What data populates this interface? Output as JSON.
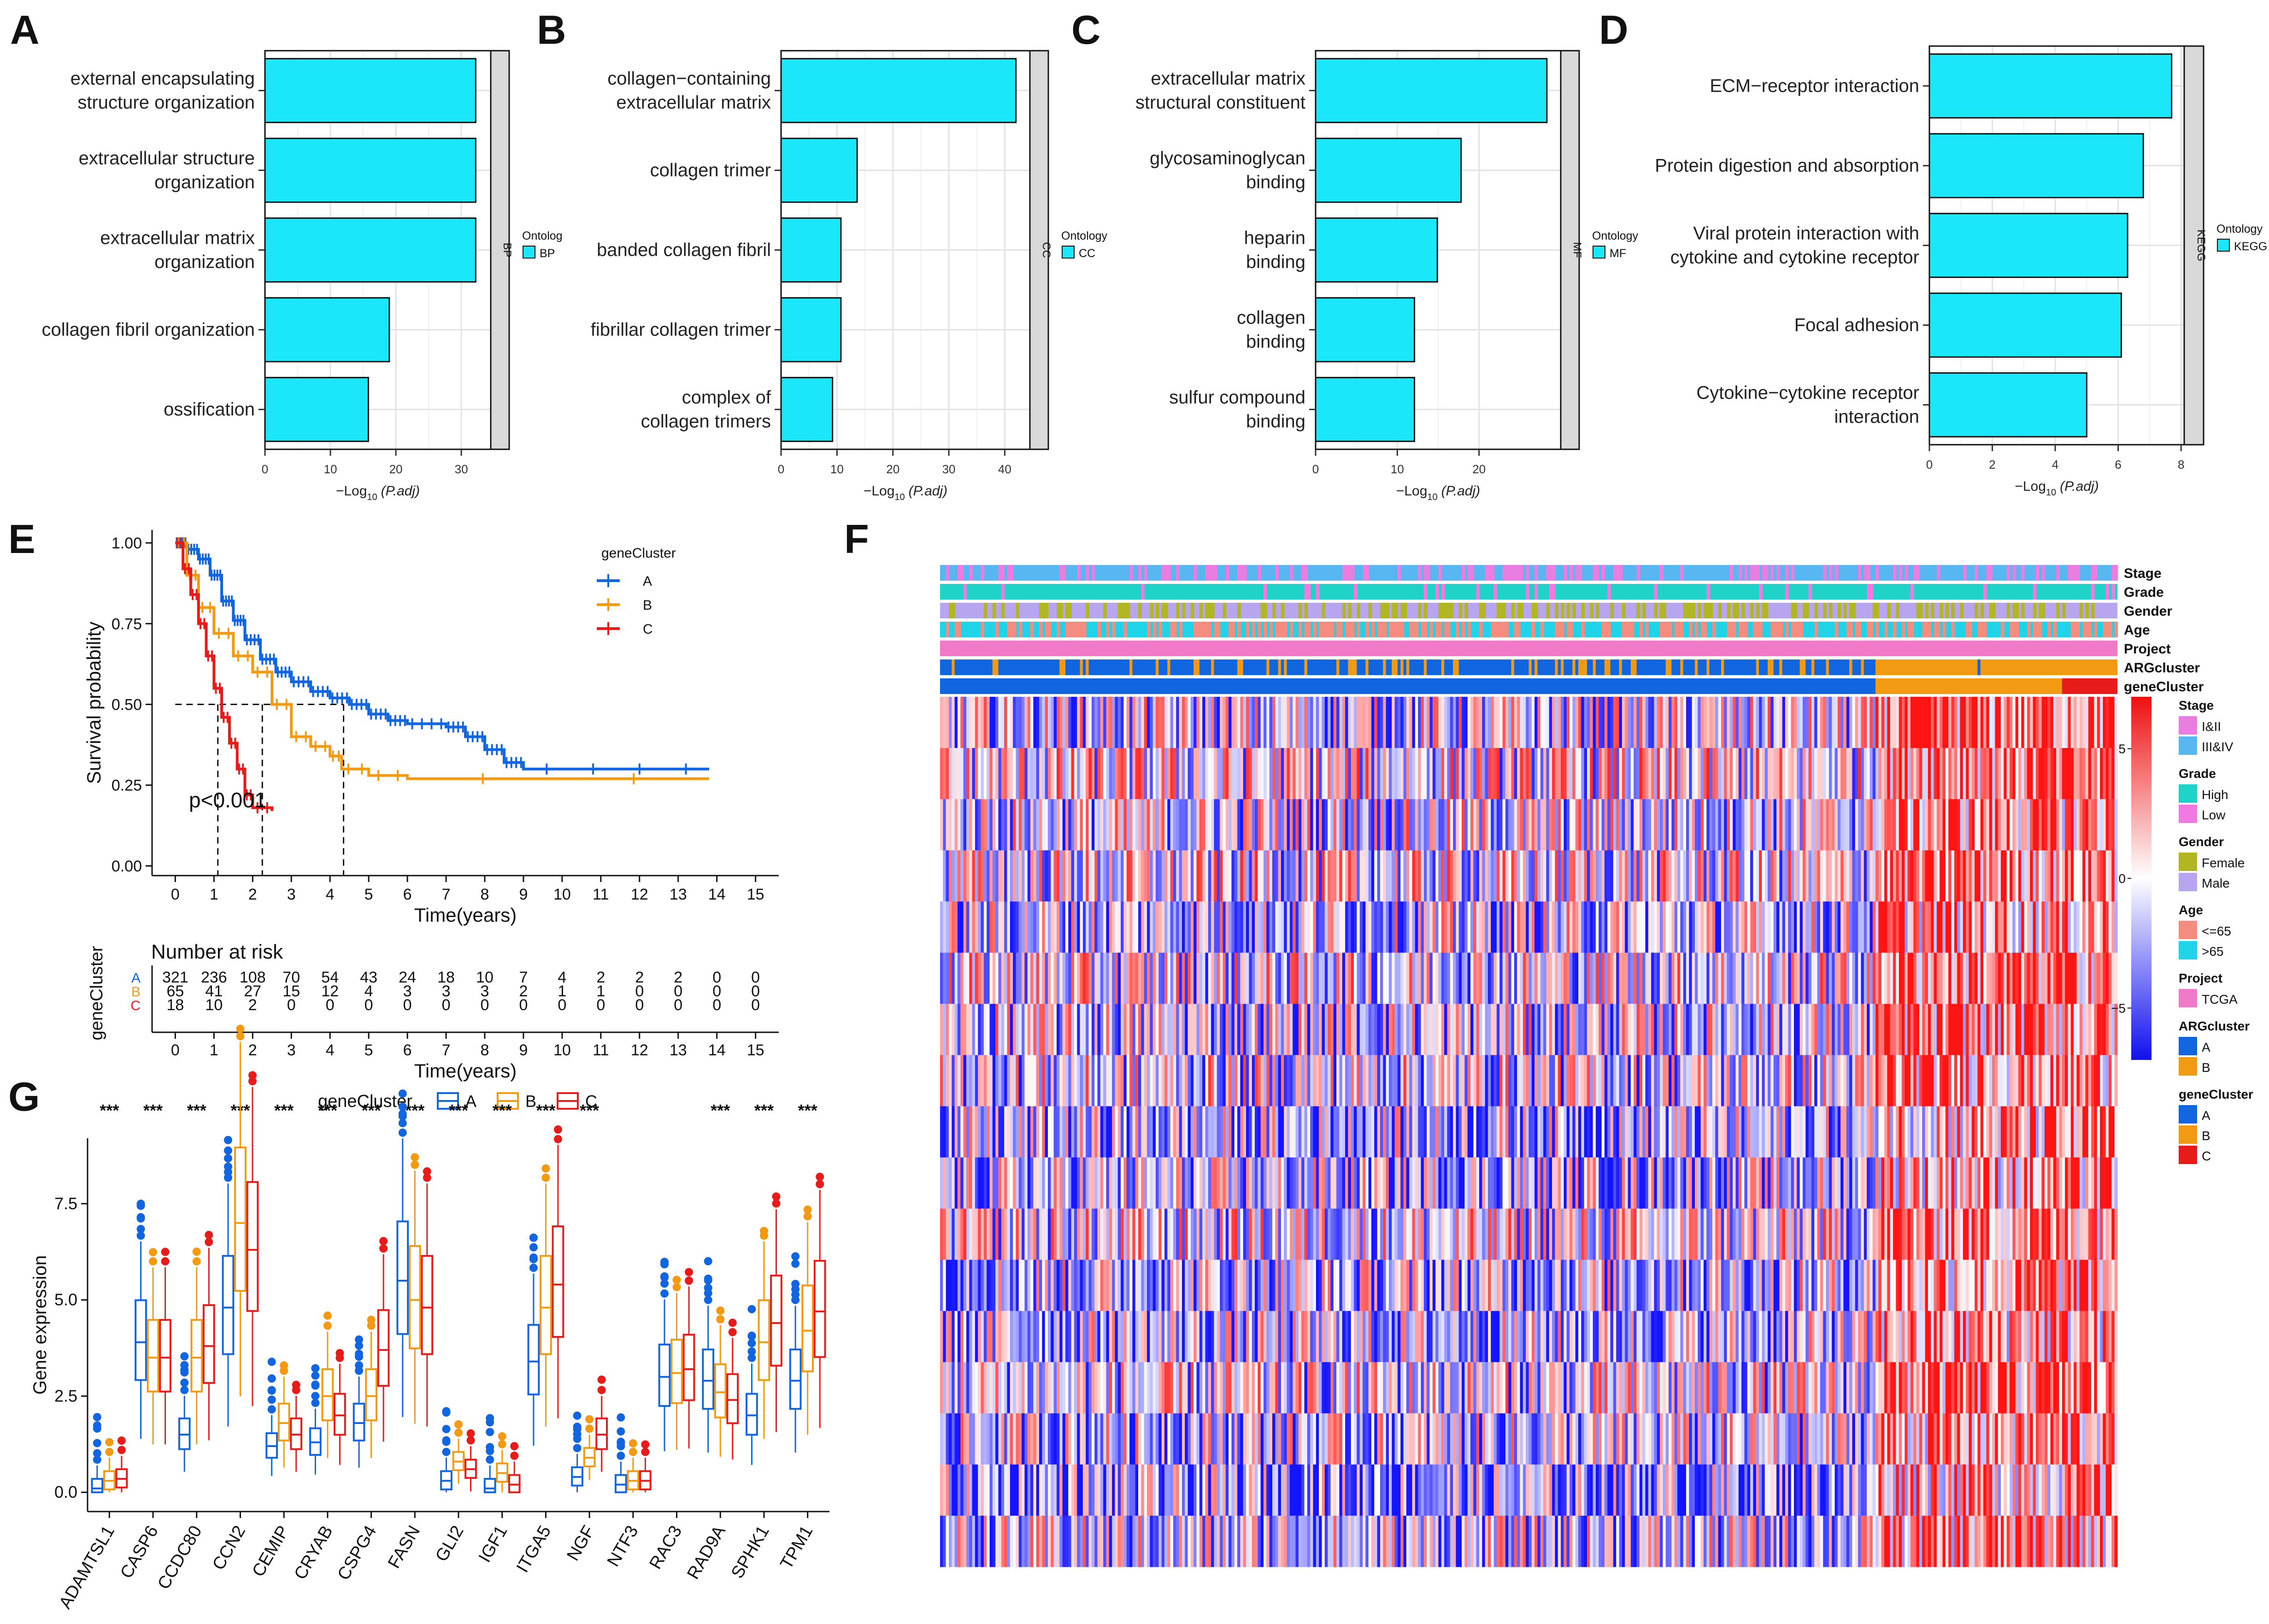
{
  "colors": {
    "bar": "#1be7fb",
    "strip": "#d9d9d9",
    "A": "#1166e0",
    "B": "#f29a12",
    "C": "#e81b1b",
    "heat_low": "#1010ee",
    "heat_mid": "#ffffff",
    "heat_high": "#ee1010"
  },
  "chart_data": [
    {
      "id": "A",
      "type": "bar",
      "panel_label": "A",
      "orientation": "horizontal",
      "categories": [
        "external encapsulating structure organization",
        "extracellular structure organization",
        "extracellular matrix organization",
        "collagen fibril organization",
        "ossification"
      ],
      "label_lines": [
        [
          "external encapsulating",
          "structure organization"
        ],
        [
          "extracellular structure",
          "organization"
        ],
        [
          "extracellular matrix",
          "organization"
        ],
        [
          "collagen fibril organization"
        ],
        [
          "ossification"
        ]
      ],
      "values": [
        32.2,
        32.2,
        32.2,
        19.0,
        15.8
      ],
      "xlim": [
        0,
        34.5
      ],
      "xticks": [
        "0",
        "10",
        "20",
        "30"
      ],
      "xtick_values": [
        0,
        10,
        20,
        30
      ],
      "xlabel": "−Log10 (P.adj)",
      "xlabel_main": "−Log",
      "xlabel_sub": "10",
      "xlabel_tail": "(P.adj)",
      "facet": "BP",
      "legend_title": "Ontolog",
      "legend_label": "BP"
    },
    {
      "id": "B",
      "type": "bar",
      "panel_label": "B",
      "orientation": "horizontal",
      "categories": [
        "collagen−containing extracellular matrix",
        "collagen trimer",
        "banded collagen fibril",
        "fibrillar collagen trimer",
        "complex of collagen trimers"
      ],
      "label_lines": [
        [
          "collagen−containing",
          "extracellular matrix"
        ],
        [
          "collagen trimer"
        ],
        [
          "banded collagen fibril"
        ],
        [
          "fibrillar collagen trimer"
        ],
        [
          "complex of",
          "collagen trimers"
        ]
      ],
      "values": [
        42.0,
        13.6,
        10.7,
        10.7,
        9.2
      ],
      "xlim": [
        0,
        44.5
      ],
      "xticks": [
        "0",
        "10",
        "20",
        "30",
        "40"
      ],
      "xtick_values": [
        0,
        10,
        20,
        30,
        40
      ],
      "xlabel": "−Log10 (P.adj)",
      "xlabel_main": "−Log",
      "xlabel_sub": "10",
      "xlabel_tail": "(P.adj)",
      "facet": "CC",
      "legend_title": "Ontology",
      "legend_label": "CC"
    },
    {
      "id": "C",
      "type": "bar",
      "panel_label": "C",
      "orientation": "horizontal",
      "categories": [
        "extracellular matrix structural constituent",
        "glycosaminoglycan binding",
        "heparin binding",
        "collagen binding",
        "sulfur compound binding"
      ],
      "label_lines": [
        [
          "extracellular matrix",
          "structural constituent"
        ],
        [
          "glycosaminoglycan",
          "binding"
        ],
        [
          "heparin",
          "binding"
        ],
        [
          "collagen",
          "binding"
        ],
        [
          "sulfur compound",
          "binding"
        ]
      ],
      "values": [
        28.3,
        17.8,
        14.9,
        12.1,
        12.1
      ],
      "xlim": [
        0,
        30.0
      ],
      "xticks": [
        "0",
        "10",
        "20"
      ],
      "xtick_values": [
        0,
        10,
        20
      ],
      "xlabel": "−Log10 (P.adj)",
      "xlabel_main": "−Log",
      "xlabel_sub": "10",
      "xlabel_tail": "(P.adj)",
      "facet": "MF",
      "legend_title": "Ontology",
      "legend_label": "MF"
    },
    {
      "id": "D",
      "type": "bar",
      "panel_label": "D",
      "orientation": "horizontal",
      "categories": [
        "ECM−receptor interaction",
        "Protein digestion and absorption",
        "Viral protein interaction with cytokine and cytokine receptor",
        "Focal adhesion",
        "Cytokine−cytokine receptor interaction"
      ],
      "label_lines": [
        [
          "ECM−receptor interaction"
        ],
        [
          "Protein digestion and absorption"
        ],
        [
          "Viral protein interaction with",
          "cytokine and cytokine receptor"
        ],
        [
          "Focal adhesion"
        ],
        [
          "Cytokine−cytokine receptor",
          "interaction"
        ]
      ],
      "values": [
        7.7,
        6.8,
        6.3,
        6.1,
        5.0
      ],
      "xlim": [
        0,
        8.1
      ],
      "xticks": [
        "0",
        "2",
        "4",
        "6",
        "8"
      ],
      "xtick_values": [
        0,
        2,
        4,
        6,
        8
      ],
      "xlabel": "−Log10 (P.adj)",
      "xlabel_main": "−Log",
      "xlabel_sub": "10",
      "xlabel_tail": "(P.adj)",
      "facet": "KEGG",
      "legend_title": "Ontology",
      "legend_label": "KEGG"
    },
    {
      "id": "E",
      "type": "line",
      "panel_label": "E",
      "title": "",
      "xlabel": "Time(years)",
      "ylabel": "Survival probability",
      "xlim": [
        -0.6,
        15.6
      ],
      "ylim": [
        -0.03,
        1.04
      ],
      "xticks": [
        "0",
        "1",
        "2",
        "3",
        "4",
        "5",
        "6",
        "7",
        "8",
        "9",
        "10",
        "11",
        "12",
        "13",
        "14",
        "15"
      ],
      "yticks": [
        "0.00",
        "0.25",
        "0.50",
        "0.75",
        "1.00"
      ],
      "ytick_values": [
        0,
        0.25,
        0.5,
        0.75,
        1.0
      ],
      "legend_title": "geneCluster",
      "pvalue": "p<0.001",
      "medians": [
        1.1,
        2.25,
        4.35
      ],
      "series": [
        {
          "name": "A",
          "points": [
            [
              0,
              1.0
            ],
            [
              0.3,
              0.98
            ],
            [
              0.6,
              0.95
            ],
            [
              0.9,
              0.9
            ],
            [
              1.2,
              0.82
            ],
            [
              1.5,
              0.76
            ],
            [
              1.8,
              0.7
            ],
            [
              2.2,
              0.64
            ],
            [
              2.6,
              0.6
            ],
            [
              3.0,
              0.57
            ],
            [
              3.5,
              0.54
            ],
            [
              4.0,
              0.52
            ],
            [
              4.5,
              0.5
            ],
            [
              5.0,
              0.47
            ],
            [
              5.5,
              0.45
            ],
            [
              6.0,
              0.44
            ],
            [
              7.0,
              0.43
            ],
            [
              7.5,
              0.4
            ],
            [
              8.0,
              0.36
            ],
            [
              8.5,
              0.32
            ],
            [
              9.0,
              0.3
            ],
            [
              13.8,
              0.3
            ]
          ]
        },
        {
          "name": "B",
          "points": [
            [
              0,
              1.0
            ],
            [
              0.3,
              0.9
            ],
            [
              0.6,
              0.8
            ],
            [
              1.0,
              0.72
            ],
            [
              1.5,
              0.65
            ],
            [
              2.0,
              0.6
            ],
            [
              2.5,
              0.5
            ],
            [
              3.0,
              0.4
            ],
            [
              3.5,
              0.37
            ],
            [
              4.0,
              0.34
            ],
            [
              4.3,
              0.3
            ],
            [
              5.0,
              0.28
            ],
            [
              6.0,
              0.27
            ],
            [
              13.8,
              0.27
            ]
          ]
        },
        {
          "name": "C",
          "points": [
            [
              0,
              1.0
            ],
            [
              0.2,
              0.92
            ],
            [
              0.4,
              0.84
            ],
            [
              0.6,
              0.75
            ],
            [
              0.8,
              0.65
            ],
            [
              1.0,
              0.55
            ],
            [
              1.2,
              0.46
            ],
            [
              1.4,
              0.38
            ],
            [
              1.6,
              0.3
            ],
            [
              1.8,
              0.22
            ],
            [
              2.0,
              0.18
            ],
            [
              2.5,
              0.17
            ]
          ]
        }
      ],
      "risk_table": {
        "title": "Number at risk",
        "ylabel": "geneCluster",
        "xlabel": "Time(years)",
        "rows": [
          {
            "name": "A",
            "counts": [
              "321",
              "236",
              "108",
              "70",
              "54",
              "43",
              "24",
              "18",
              "10",
              "7",
              "4",
              "2",
              "2",
              "2",
              "0",
              "0"
            ]
          },
          {
            "name": "B",
            "counts": [
              "65",
              "41",
              "27",
              "15",
              "12",
              "4",
              "3",
              "3",
              "3",
              "2",
              "1",
              "1",
              "0",
              "0",
              "0",
              "0"
            ]
          },
          {
            "name": "C",
            "counts": [
              "18",
              "10",
              "2",
              "0",
              "0",
              "0",
              "0",
              "0",
              "0",
              "0",
              "0",
              "0",
              "0",
              "0",
              "0",
              "0"
            ]
          }
        ]
      }
    },
    {
      "id": "G",
      "type": "box",
      "panel_label": "G",
      "ylabel": "Gene expression",
      "ylim": [
        -0.5,
        9.2
      ],
      "yticks": [
        "0.0",
        "2.5",
        "5.0",
        "7.5"
      ],
      "ytick_values": [
        0,
        2.5,
        5.0,
        7.5
      ],
      "legend_title": "geneCluster",
      "groups": [
        "A",
        "B",
        "C"
      ],
      "categories": [
        "ADAMTSL1",
        "CASP6",
        "CCDC80",
        "CCN2",
        "CEMIP",
        "CRYAB",
        "CSPG4",
        "FASN",
        "GLI2",
        "IGF1",
        "ITGA5",
        "NGF",
        "NTF3",
        "RAC3",
        "RAD9A",
        "SPHK1",
        "TPM1"
      ],
      "significance": [
        "***",
        "***",
        "***",
        "***",
        "***",
        "***",
        "***",
        "***",
        "***",
        "***",
        "***",
        "***",
        "",
        "",
        "***",
        "***",
        "***"
      ],
      "medians": [
        [
          0.1,
          0.3,
          0.35
        ],
        [
          3.9,
          3.5,
          3.5
        ],
        [
          1.5,
          3.5,
          3.8
        ],
        [
          4.8,
          7.0,
          6.3
        ],
        [
          1.2,
          1.8,
          1.5
        ],
        [
          1.3,
          2.5,
          2.0
        ],
        [
          1.8,
          2.5,
          3.7
        ],
        [
          5.5,
          5.0,
          4.8
        ],
        [
          0.3,
          0.8,
          0.6
        ],
        [
          0.1,
          0.5,
          0.2
        ],
        [
          3.4,
          4.8,
          5.4
        ],
        [
          0.4,
          0.9,
          1.5
        ],
        [
          0.2,
          0.3,
          0.3
        ],
        [
          3.0,
          3.1,
          3.2
        ],
        [
          2.9,
          2.6,
          2.4
        ],
        [
          2.0,
          3.9,
          4.4
        ],
        [
          2.9,
          4.2,
          4.7
        ]
      ]
    },
    {
      "id": "F",
      "type": "heatmap",
      "panel_label": "F",
      "annotation_rows": [
        "Stage",
        "Grade",
        "Gender",
        "Age",
        "Project",
        "ARGcluster",
        "geneCluster"
      ],
      "n_genes": 17,
      "n_samples": 404,
      "colorbar_ticks": [
        "5",
        "0",
        "−5"
      ],
      "colorbar_values": [
        5,
        0,
        -5
      ],
      "legend": [
        {
          "title": "Stage",
          "items": [
            {
              "label": "I&II",
              "color": "#e97ee0"
            },
            {
              "label": "III&IV",
              "color": "#58b6f0"
            }
          ]
        },
        {
          "title": "Grade",
          "items": [
            {
              "label": "High",
              "color": "#1fd3c9"
            },
            {
              "label": "Low",
              "color": "#f07ae1"
            }
          ]
        },
        {
          "title": "Gender",
          "items": [
            {
              "label": "Female",
              "color": "#b2b622"
            },
            {
              "label": "Male",
              "color": "#b7a5f0"
            }
          ]
        },
        {
          "title": "Age",
          "items": [
            {
              "label": "<=65",
              "color": "#f58c80"
            },
            {
              "label": ">65",
              "color": "#1fd3e9"
            }
          ]
        },
        {
          "title": "Project",
          "items": [
            {
              "label": "TCGA",
              "color": "#f07ac8"
            }
          ]
        },
        {
          "title": "ARGcluster",
          "items": [
            {
              "label": "A",
              "color": "#1166e0"
            },
            {
              "label": "B",
              "color": "#f29a12"
            }
          ]
        },
        {
          "title": "geneCluster",
          "items": [
            {
              "label": "A",
              "color": "#1166e0"
            },
            {
              "label": "B",
              "color": "#f29a12"
            },
            {
              "label": "C",
              "color": "#e81b1b"
            }
          ]
        }
      ]
    }
  ]
}
